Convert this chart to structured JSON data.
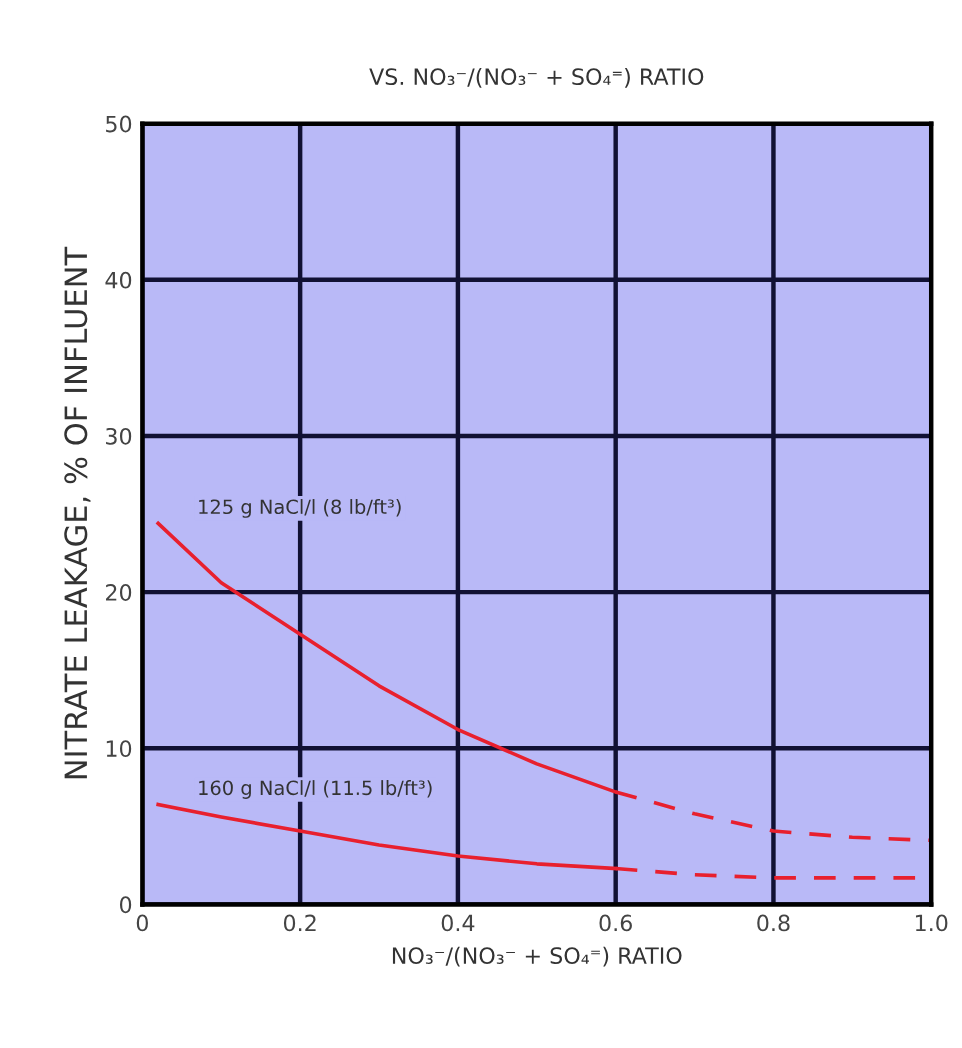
{
  "chart_data": {
    "type": "line",
    "title": "VS. NO₃⁻/(NO₃⁻ + SO₄⁼) RATIO",
    "xlabel": "NO₃⁻/(NO₃⁻ + SO₄⁼) RATIO",
    "ylabel": "NITRATE LEAKAGE, % OF INFLUENT",
    "series": [
      {
        "name": "125 g NaCl/l (8 lb/ft³)",
        "color": "#e8202e",
        "line_style": "solid",
        "x": [
          0.02,
          0.1,
          0.2,
          0.3,
          0.4,
          0.5,
          0.6
        ],
        "values": [
          24.4,
          20.6,
          17.3,
          14.0,
          11.2,
          9.0,
          7.2
        ]
      },
      {
        "color": "#e8202e",
        "line_style": "dashed",
        "x": [
          0.6,
          0.7,
          0.8,
          0.9,
          1.0
        ],
        "values": [
          7.2,
          5.8,
          4.7,
          4.3,
          4.1
        ]
      },
      {
        "name": "160 g NaCl/l (11.5 lb/ft³)",
        "color": "#e8202e",
        "line_style": "solid",
        "x": [
          0.02,
          0.1,
          0.2,
          0.3,
          0.4,
          0.5,
          0.6
        ],
        "values": [
          6.4,
          5.6,
          4.7,
          3.8,
          3.1,
          2.6,
          2.3
        ]
      },
      {
        "color": "#e8202e",
        "line_style": "dashed",
        "x": [
          0.6,
          0.7,
          0.8,
          0.9,
          1.0
        ],
        "values": [
          2.3,
          1.9,
          1.7,
          1.7,
          1.7
        ]
      }
    ],
    "xlim": [
      0,
      1
    ],
    "ylim": [
      0,
      50
    ],
    "xticks": [
      0,
      0.2,
      0.4,
      0.6,
      0.8,
      {
        "value": 1,
        "label": "1.0"
      }
    ],
    "yticks": [
      0,
      10,
      20,
      30,
      40,
      50
    ],
    "grid": true,
    "legend": false
  }
}
